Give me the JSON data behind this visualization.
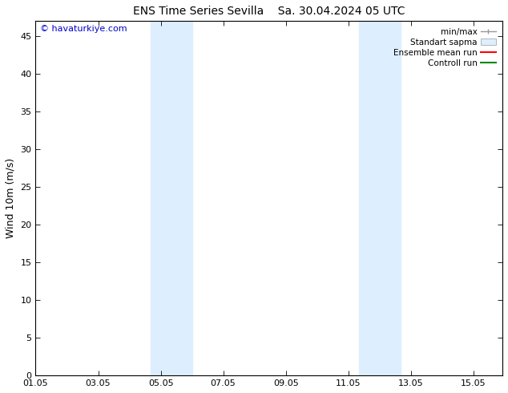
{
  "title_left": "ENS Time Series Sevilla",
  "title_right": "Sa. 30.04.2024 05 UTC",
  "ylabel": "Wind 10m (m/s)",
  "watermark": "© havaturkiye.com",
  "watermark_color": "#0000cc",
  "ylim": [
    0,
    47
  ],
  "yticks": [
    0,
    5,
    10,
    15,
    20,
    25,
    30,
    35,
    40,
    45
  ],
  "xtick_labels": [
    "01.05",
    "03.05",
    "05.05",
    "07.05",
    "09.05",
    "11.05",
    "13.05",
    "15.05"
  ],
  "xtick_positions": [
    0,
    2,
    4,
    6,
    8,
    10,
    12,
    14
  ],
  "xlim": [
    0,
    14.93
  ],
  "shaded_regions": [
    {
      "start": 3.67,
      "end": 4.33
    },
    {
      "start": 4.33,
      "end": 5.0
    },
    {
      "start": 10.33,
      "end": 11.0
    },
    {
      "start": 11.0,
      "end": 11.67
    }
  ],
  "shade_color": "#ddeeff",
  "bg_color": "#ffffff",
  "legend_labels": [
    "min/max",
    "Standart sapma",
    "Ensemble mean run",
    "Controll run"
  ],
  "minmax_color": "#999999",
  "std_facecolor": "#ddeeff",
  "std_edgecolor": "#aaaaaa",
  "ensemble_color": "#ff0000",
  "control_color": "#008800",
  "title_fontsize": 10,
  "ylabel_fontsize": 9,
  "tick_fontsize": 8,
  "legend_fontsize": 7.5,
  "watermark_fontsize": 8
}
